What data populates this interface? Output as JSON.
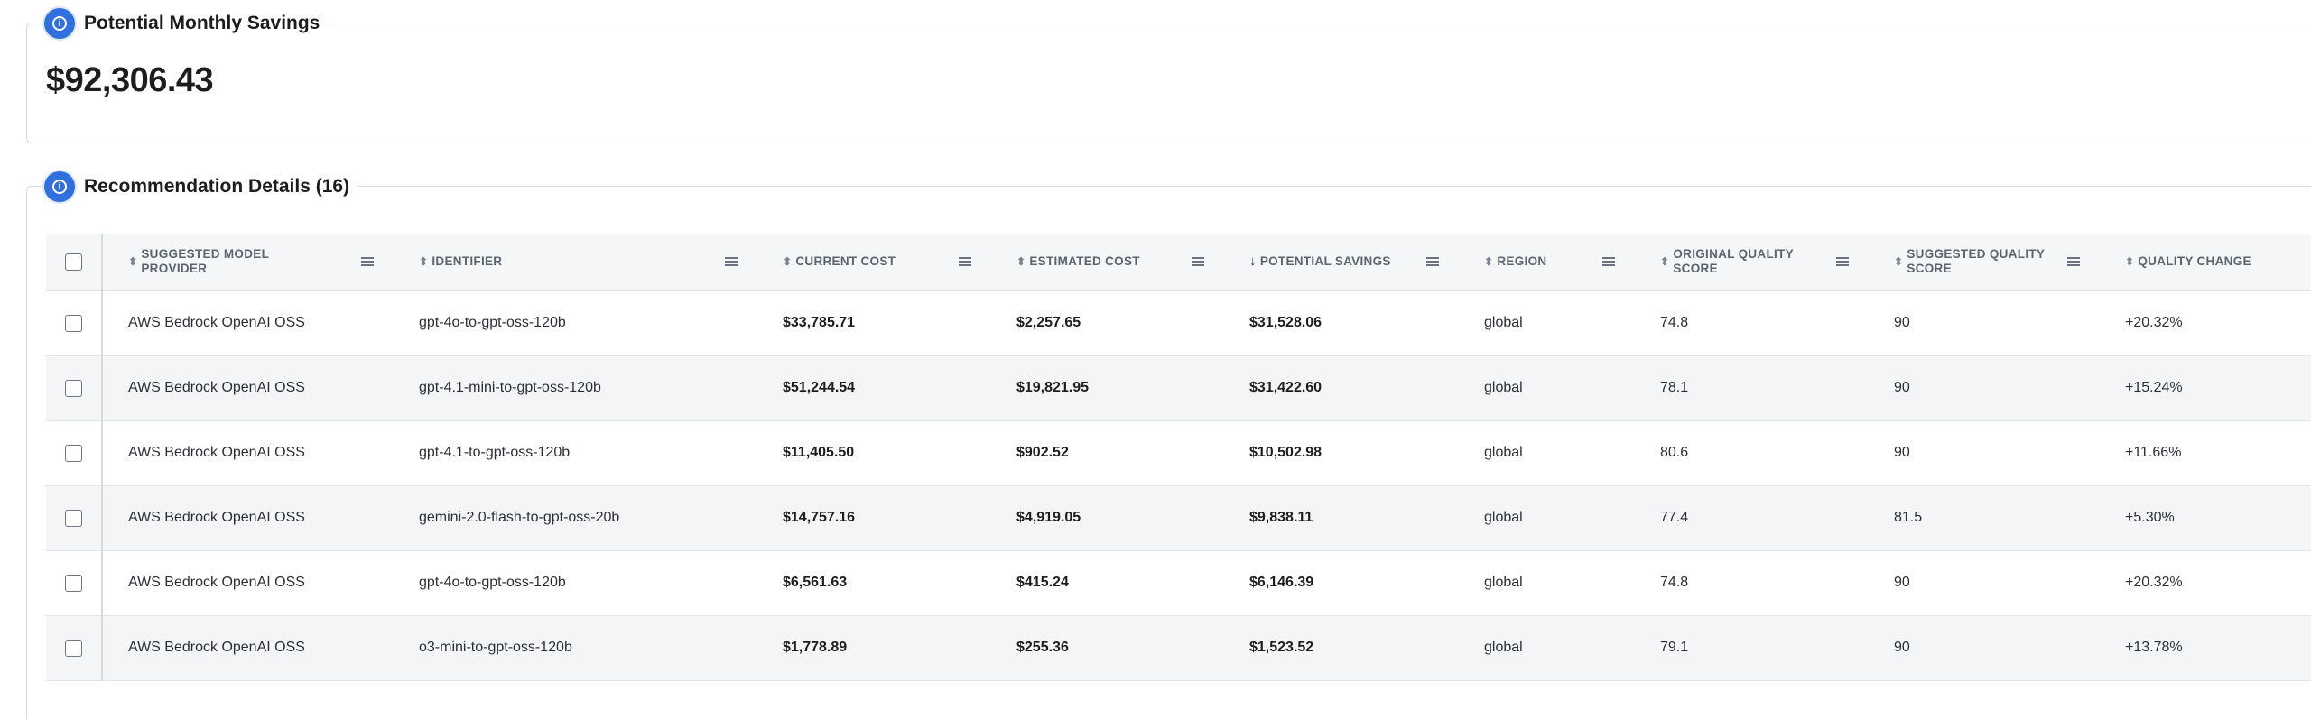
{
  "savings": {
    "title": "Potential Monthly Savings",
    "amount": "$92,306.43"
  },
  "details": {
    "title": "Recommendation Details (16)",
    "columns": [
      {
        "line1": "SUGGESTED MODEL",
        "line2": "PROVIDER",
        "sort": "unsorted"
      },
      {
        "line1": "IDENTIFIER",
        "line2": "",
        "sort": "unsorted"
      },
      {
        "line1": "CURRENT COST",
        "line2": "",
        "sort": "unsorted"
      },
      {
        "line1": "ESTIMATED COST",
        "line2": "",
        "sort": "unsorted"
      },
      {
        "line1": "POTENTIAL SAVINGS",
        "line2": "",
        "sort": "descending"
      },
      {
        "line1": "REGION",
        "line2": "",
        "sort": "unsorted"
      },
      {
        "line1": "ORIGINAL QUALITY",
        "line2": "SCORE",
        "sort": "unsorted"
      },
      {
        "line1": "SUGGESTED QUALITY",
        "line2": "SCORE",
        "sort": "unsorted"
      },
      {
        "line1": "QUALITY CHANGE",
        "line2": "",
        "sort": "unsorted"
      }
    ],
    "rows": [
      {
        "provider": "AWS Bedrock OpenAI OSS",
        "identifier": "gpt-4o-to-gpt-oss-120b",
        "current_cost": "$33,785.71",
        "estimated_cost": "$2,257.65",
        "savings": "$31,528.06",
        "region": "global",
        "orig_score": "74.8",
        "sugg_score": "90",
        "quality_change": "+20.32%"
      },
      {
        "provider": "AWS Bedrock OpenAI OSS",
        "identifier": "gpt-4.1-mini-to-gpt-oss-120b",
        "current_cost": "$51,244.54",
        "estimated_cost": "$19,821.95",
        "savings": "$31,422.60",
        "region": "global",
        "orig_score": "78.1",
        "sugg_score": "90",
        "quality_change": "+15.24%"
      },
      {
        "provider": "AWS Bedrock OpenAI OSS",
        "identifier": "gpt-4.1-to-gpt-oss-120b",
        "current_cost": "$11,405.50",
        "estimated_cost": "$902.52",
        "savings": "$10,502.98",
        "region": "global",
        "orig_score": "80.6",
        "sugg_score": "90",
        "quality_change": "+11.66%"
      },
      {
        "provider": "AWS Bedrock OpenAI OSS",
        "identifier": "gemini-2.0-flash-to-gpt-oss-20b",
        "current_cost": "$14,757.16",
        "estimated_cost": "$4,919.05",
        "savings": "$9,838.11",
        "region": "global",
        "orig_score": "77.4",
        "sugg_score": "81.5",
        "quality_change": "+5.30%"
      },
      {
        "provider": "AWS Bedrock OpenAI OSS",
        "identifier": "gpt-4o-to-gpt-oss-120b",
        "current_cost": "$6,561.63",
        "estimated_cost": "$415.24",
        "savings": "$6,146.39",
        "region": "global",
        "orig_score": "74.8",
        "sugg_score": "90",
        "quality_change": "+20.32%"
      },
      {
        "provider": "AWS Bedrock OpenAI OSS",
        "identifier": "o3-mini-to-gpt-oss-120b",
        "current_cost": "$1,778.89",
        "estimated_cost": "$255.36",
        "savings": "$1,523.52",
        "region": "global",
        "orig_score": "79.1",
        "sugg_score": "90",
        "quality_change": "+13.78%"
      }
    ]
  },
  "icons": {
    "section_icon": "info-icon",
    "unsorted_sort": "sort-both-icon",
    "descending_sort": "sort-descending-icon",
    "column_menu": "column-menu-icon"
  },
  "colors": {
    "accent": "#2f6fde",
    "header_bg": "#f5f6f8",
    "stripe_bg": "#f4f5f7"
  }
}
